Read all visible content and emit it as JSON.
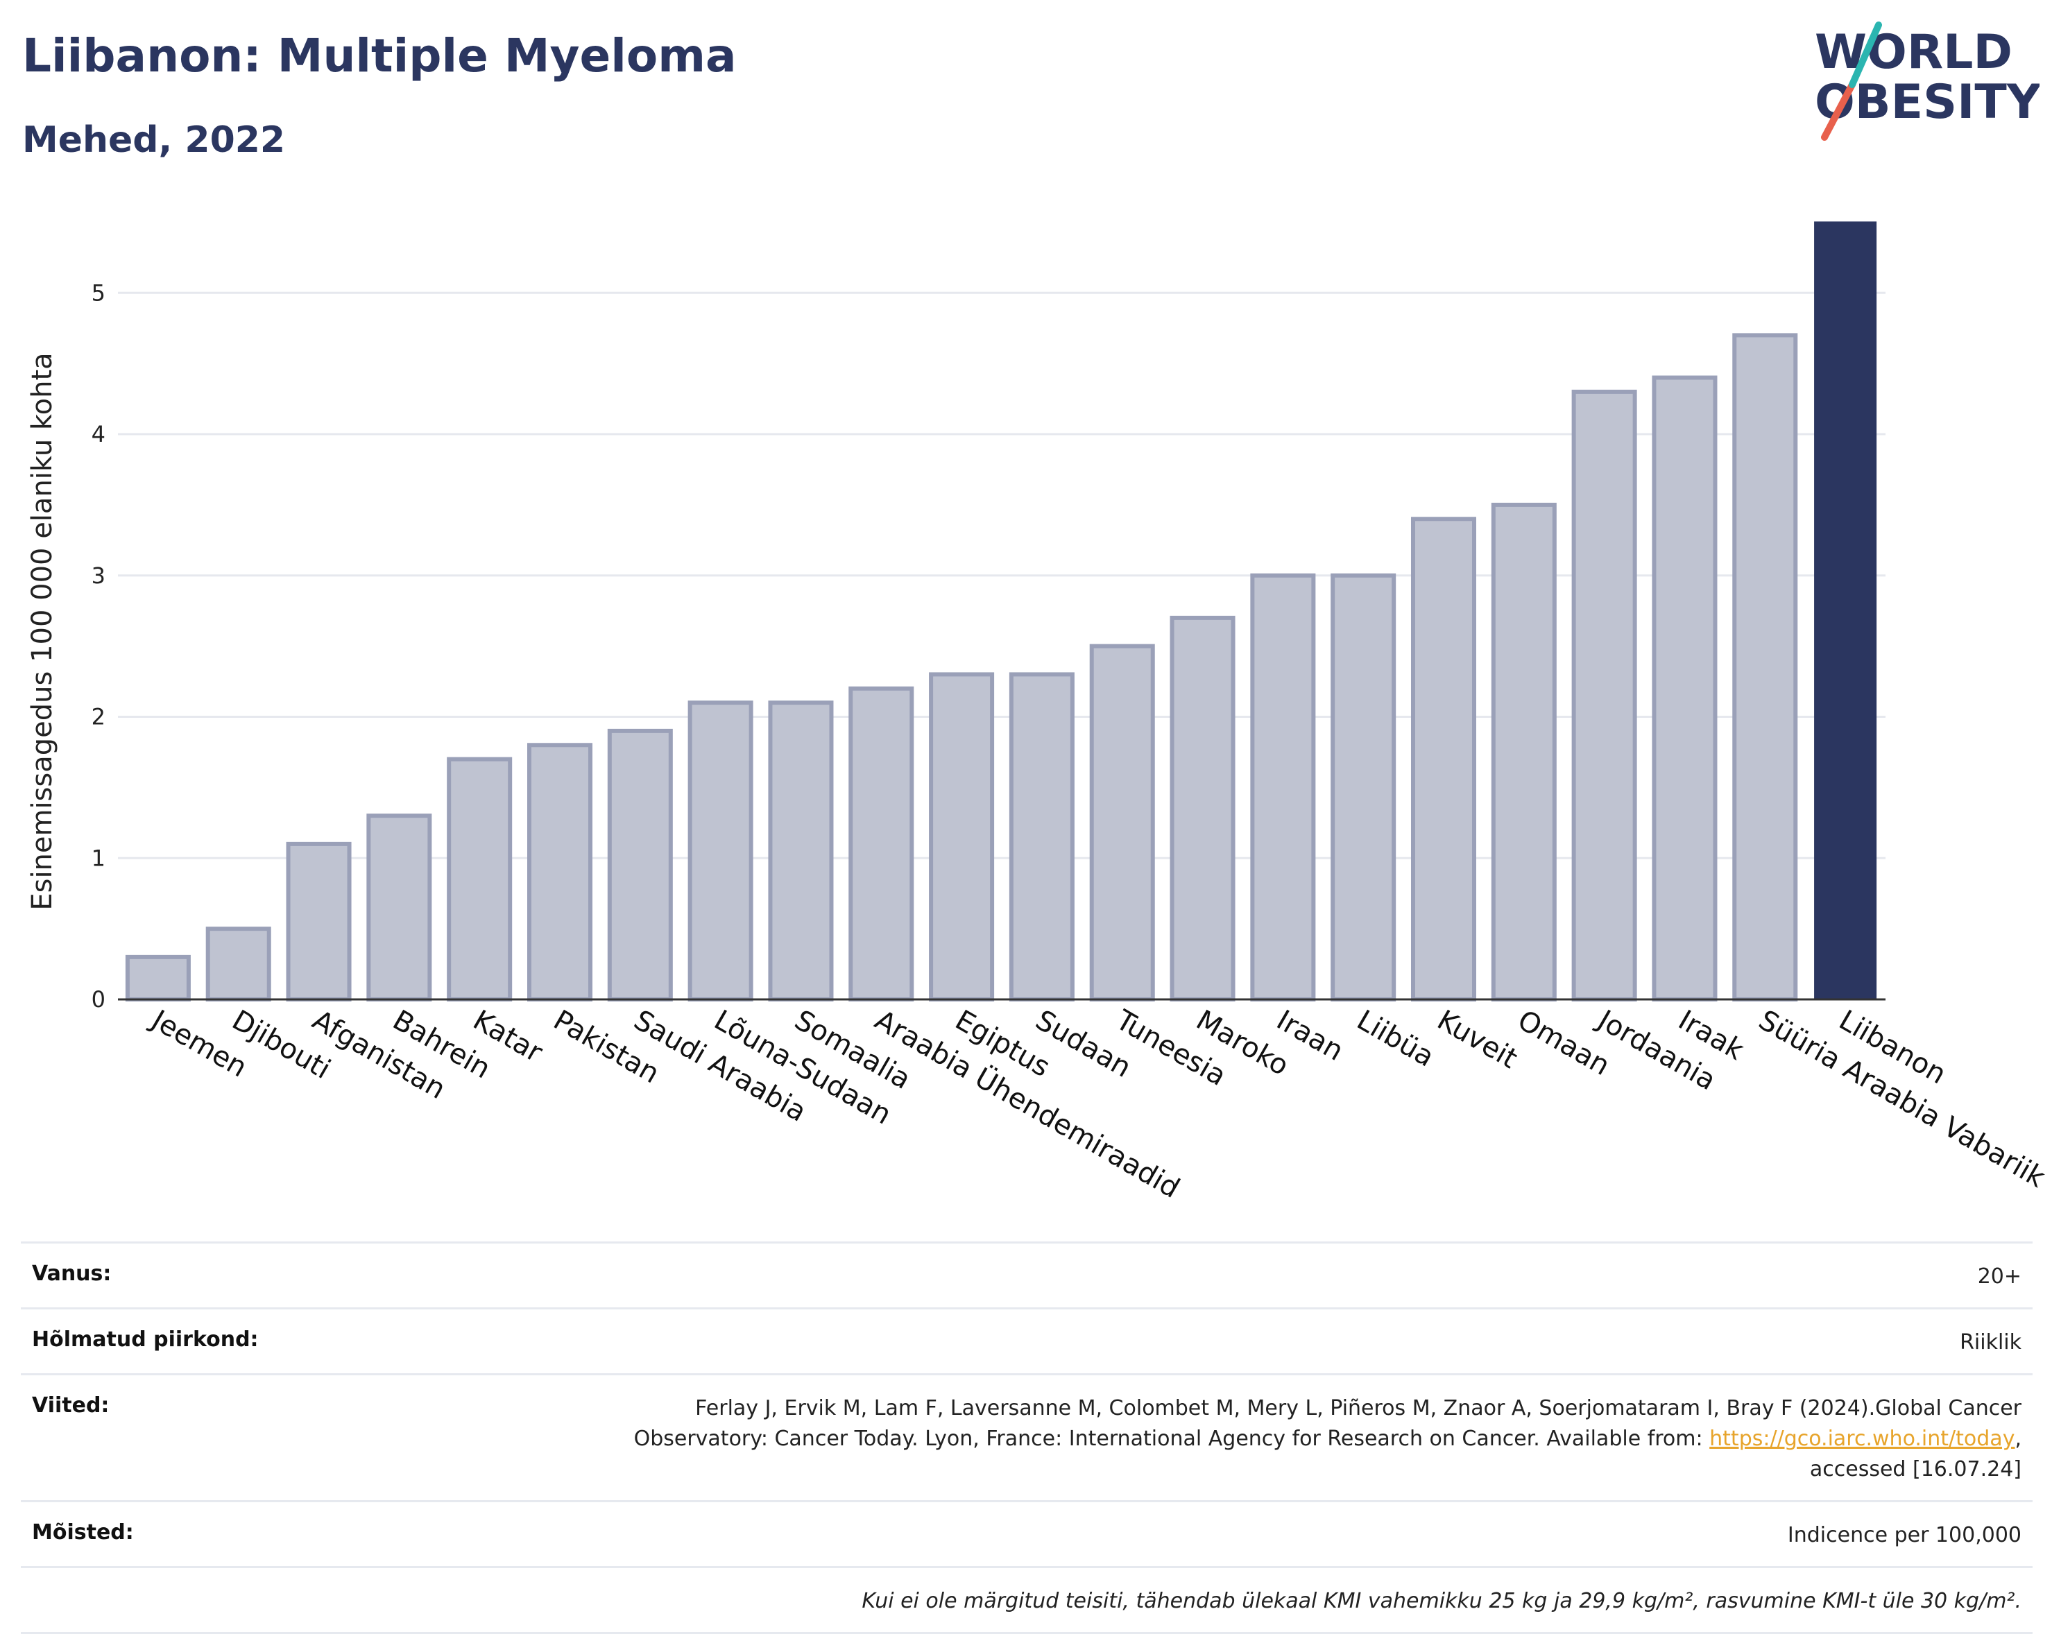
{
  "header": {
    "title": "Liibanon: Multiple Myeloma",
    "subtitle": "Mehed, 2022"
  },
  "logo": {
    "line1": "WORLD",
    "line2": "OBESITY",
    "colors": {
      "text": "#2b3660",
      "slash_top": "#2bb5b0",
      "slash_bottom": "#e8604c"
    }
  },
  "colors": {
    "bar_default": "#bfc3d1",
    "bar_stroke": "#9aa0b8",
    "bar_highlight": "#2b3660",
    "grid": "#e6e8ee",
    "link": "#e7a42b"
  },
  "chart_data": {
    "type": "bar",
    "ylabel": "Esinemissagedus 100 000 elaniku kohta",
    "xlabel": "",
    "ylim": [
      0,
      5.6
    ],
    "yticks": [
      0,
      1,
      2,
      3,
      4,
      5
    ],
    "grid": true,
    "highlight": "Liibanon",
    "categories": [
      "Jeemen",
      "Djibouti",
      "Afganistan",
      "Bahrein",
      "Katar",
      "Pakistan",
      "Saudi Araabia",
      "Lõuna-Sudaan",
      "Somaalia",
      "Araabia Ühendemiraadid",
      "Egiptus",
      "Sudaan",
      "Tuneesia",
      "Maroko",
      "Iraan",
      "Liibüa",
      "Kuveit",
      "Omaan",
      "Jordaania",
      "Iraak",
      "Süüria Araabia Vabariik",
      "Liibanon"
    ],
    "values": [
      0.3,
      0.5,
      1.1,
      1.3,
      1.7,
      1.8,
      1.9,
      2.1,
      2.1,
      2.2,
      2.3,
      2.3,
      2.5,
      2.7,
      3.0,
      3.0,
      3.4,
      3.5,
      4.3,
      4.4,
      4.7,
      5.5
    ]
  },
  "info_table": {
    "age_label": "Vanus:",
    "age_value": "20+",
    "region_label": "Hõlmatud piirkond:",
    "region_value": "Riiklik",
    "refs_label": "Viited:",
    "refs_text_1": "Ferlay J, Ervik M, Lam F, Laversanne M, Colombet M, Mery L, Piñeros M, Znaor A, Soerjomataram I, Bray F (2024).Global Cancer Observatory: Cancer Today. Lyon, France: International Agency for Research on Cancer. Available from: ",
    "refs_link": "https://gco.iarc.who.int/today",
    "refs_text_2": ", accessed [16.07.24]",
    "definitions_label": "Mõisted:",
    "definitions_value": "Indicence per 100,000",
    "footnote": "Kui ei ole märgitud teisiti, tähendab ülekaal KMI vahemikku 25 kg ja 29,9 kg/m², rasvumine KMI-t üle 30 kg/m²."
  }
}
